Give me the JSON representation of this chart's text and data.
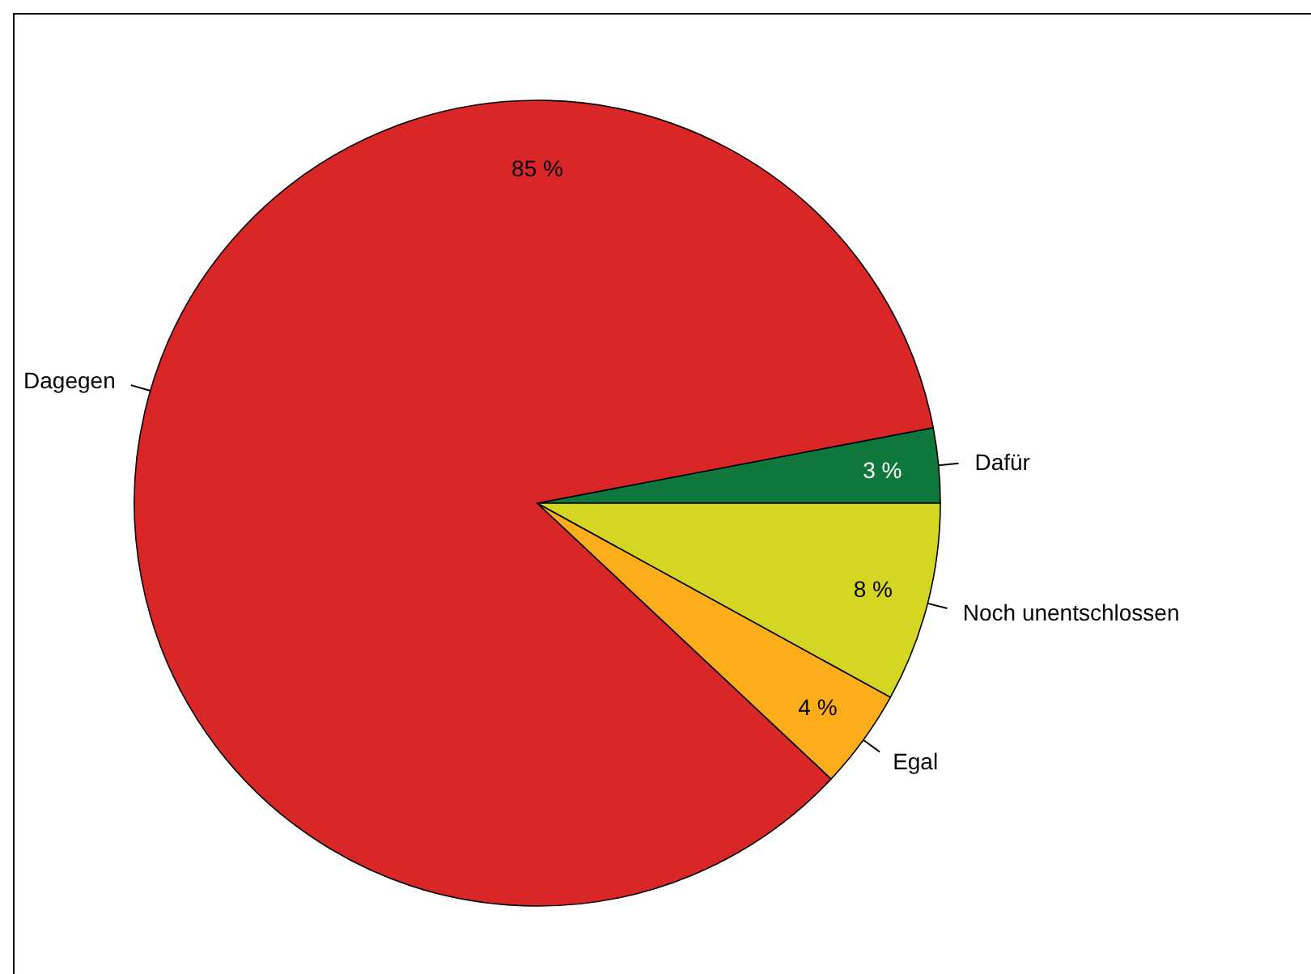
{
  "chart_data": {
    "type": "pie",
    "categories": [
      "Dafür",
      "Dagegen",
      "Egal",
      "Noch unentschlossen"
    ],
    "values": [
      3,
      85,
      4,
      8
    ],
    "colors": [
      "#0f773b",
      "#d92626",
      "#fbad1c",
      "#d4d623"
    ],
    "value_labels": [
      "3 %",
      "85 %",
      "4 %",
      "8 %"
    ]
  }
}
